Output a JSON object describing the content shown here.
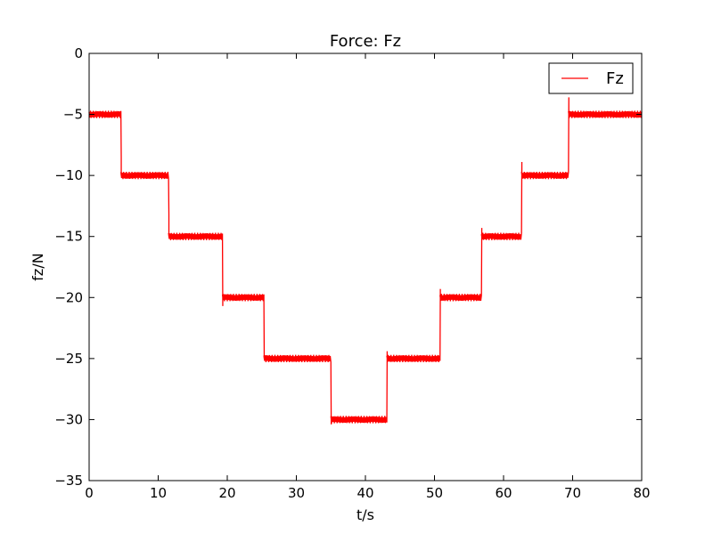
{
  "chart_data": {
    "type": "line",
    "title": "Force: Fz",
    "xlabel": "t/s",
    "ylabel": "fz/N",
    "xlim": [
      0,
      80
    ],
    "ylim": [
      -35,
      0
    ],
    "xticks": [
      0,
      10,
      20,
      30,
      40,
      50,
      60,
      70,
      80
    ],
    "yticks": [
      0,
      -5,
      -10,
      -15,
      -20,
      -25,
      -30,
      -35
    ],
    "grid": false,
    "legend": "top-right",
    "series": [
      {
        "name": "Fz",
        "color": "#ff0000",
        "steps": [
          {
            "x_start": 0.0,
            "x_end": 4.6,
            "y": -5.0,
            "noise": 0.3
          },
          {
            "x_start": 4.6,
            "x_end": 11.5,
            "y": -10.0,
            "noise": 0.3
          },
          {
            "x_start": 11.5,
            "x_end": 19.3,
            "y": -15.0,
            "noise": 0.3
          },
          {
            "x_start": 19.3,
            "x_end": 25.3,
            "y": -20.0,
            "noise": 0.3
          },
          {
            "x_start": 25.3,
            "x_end": 35.0,
            "y": -25.0,
            "noise": 0.3
          },
          {
            "x_start": 35.0,
            "x_end": 43.1,
            "y": -30.0,
            "noise": 0.3
          },
          {
            "x_start": 43.1,
            "x_end": 50.8,
            "y": -25.0,
            "noise": 0.3
          },
          {
            "x_start": 50.8,
            "x_end": 56.8,
            "y": -20.0,
            "noise": 0.3
          },
          {
            "x_start": 56.8,
            "x_end": 62.6,
            "y": -15.0,
            "noise": 0.3
          },
          {
            "x_start": 62.6,
            "x_end": 69.4,
            "y": -10.0,
            "noise": 0.3
          },
          {
            "x_start": 69.4,
            "x_end": 80.0,
            "y": -5.0,
            "noise": 0.3
          }
        ],
        "spikes": [
          {
            "x": 4.8,
            "y": -8.5
          },
          {
            "x": 11.7,
            "y": -13.2
          },
          {
            "x": 19.4,
            "y": -20.7
          },
          {
            "x": 35.1,
            "y": -30.4
          },
          {
            "x": 43.1,
            "y": -24.4
          },
          {
            "x": 50.9,
            "y": -19.3
          },
          {
            "x": 56.9,
            "y": -14.3
          },
          {
            "x": 62.7,
            "y": -8.9
          },
          {
            "x": 69.4,
            "y": -3.6
          }
        ]
      }
    ]
  }
}
